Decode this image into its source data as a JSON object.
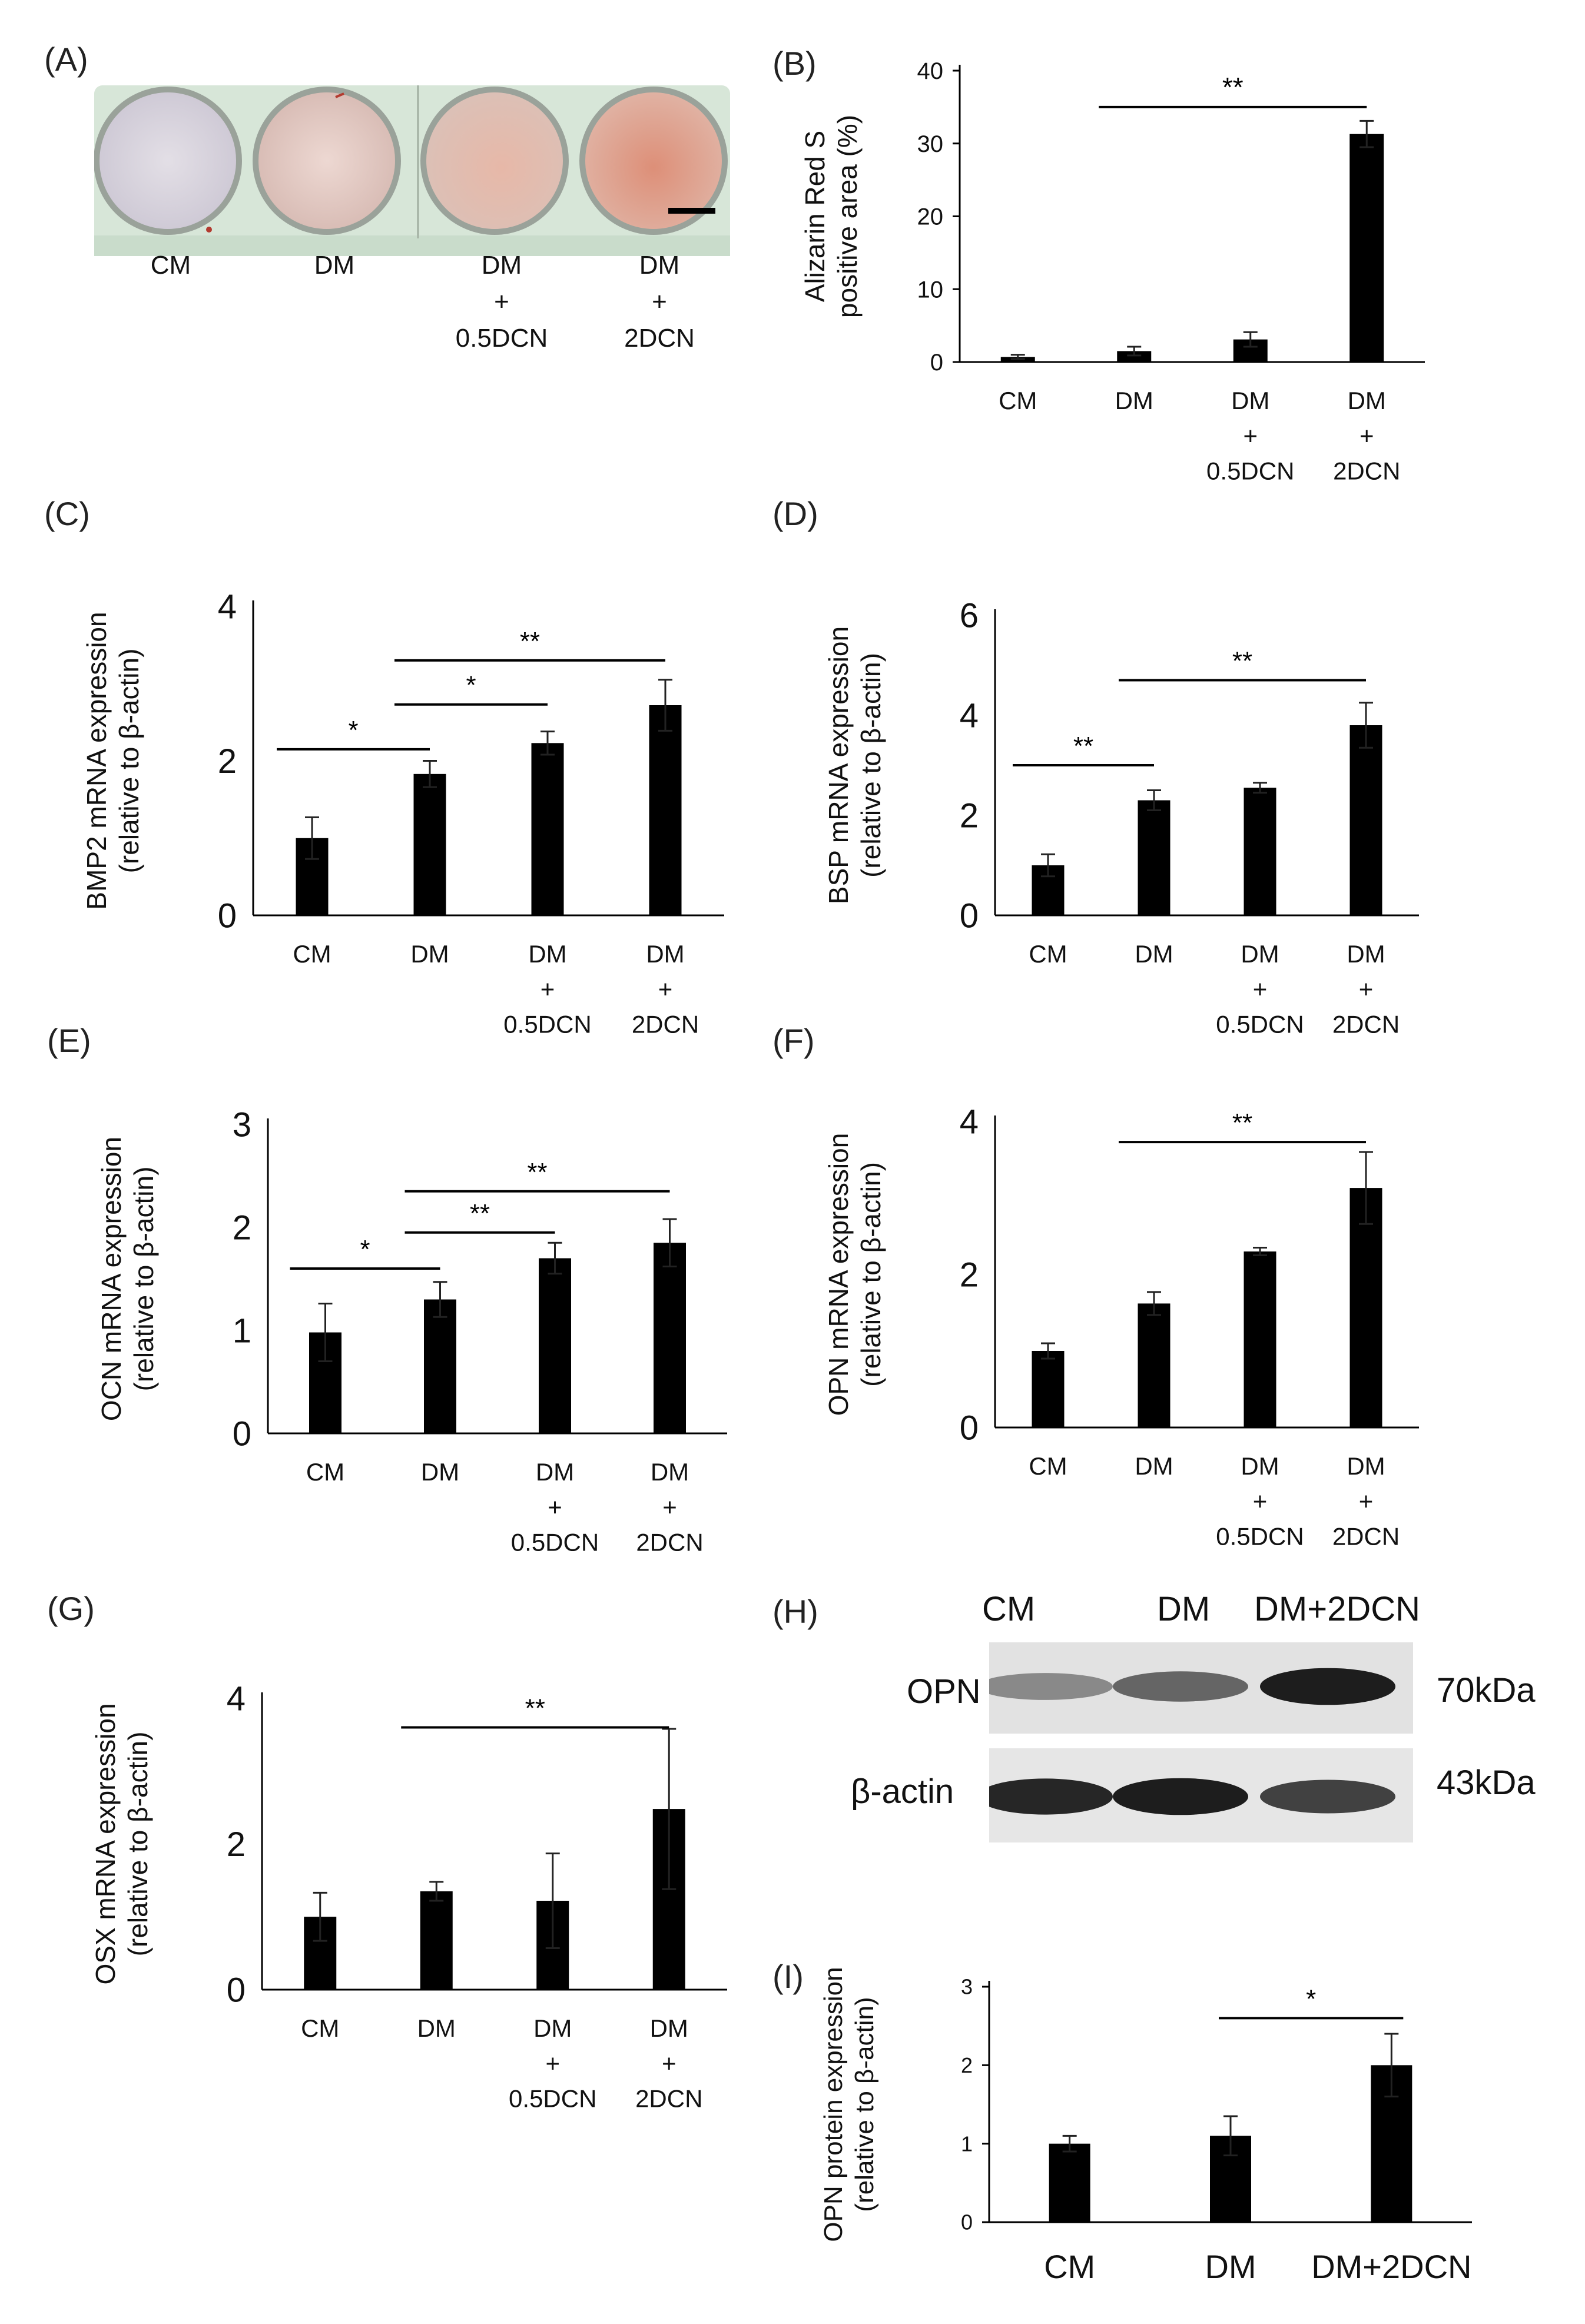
{
  "panel_labels": {
    "A": "(A)",
    "B": "(B)",
    "C": "(C)",
    "D": "(D)",
    "E": "(E)",
    "F": "(F)",
    "G": "(G)",
    "H": "(H)",
    "I": "(I)"
  },
  "panel_a": {
    "wells": [
      {
        "label": "CM",
        "tint": "#dcd7e0"
      },
      {
        "label": "DM",
        "tint": "#e7cfc8"
      },
      {
        "label": "DM\n+\n0.5DCN",
        "tint": "#e9c7bb"
      },
      {
        "label": "DM\n+\n2DCN",
        "tint": "#e3a995"
      }
    ]
  },
  "panel_h": {
    "lanes": [
      "CM",
      "DM",
      "DM+2DCN"
    ],
    "rows": [
      {
        "label": "OPN",
        "size": "70kDa",
        "intensity": [
          0.35,
          0.55,
          0.95
        ]
      },
      {
        "label": "β-actin",
        "size": "43kDa",
        "intensity": [
          0.9,
          0.95,
          0.75
        ]
      }
    ]
  },
  "chart_data": [
    {
      "id": "B",
      "type": "bar",
      "categories": [
        "CM",
        "DM",
        "DM\n+\n0.5DCN",
        "DM\n+\n2DCN"
      ],
      "values": [
        0.7,
        1.5,
        3.1,
        31.3
      ],
      "errors": [
        0.3,
        0.6,
        1.0,
        1.8
      ],
      "ylim": [
        0,
        40
      ],
      "yticks": [
        0,
        10,
        20,
        30,
        40
      ],
      "ylabel": [
        "Alizarin Red S",
        "positive area (%)"
      ],
      "significance": [
        {
          "from": 1,
          "to": 3,
          "label": "**",
          "y": 35
        }
      ]
    },
    {
      "id": "C",
      "type": "bar",
      "categories": [
        "CM",
        "DM",
        "DM\n+\n0.5DCN",
        "DM\n+\n2DCN"
      ],
      "values": [
        1.0,
        1.83,
        2.23,
        2.72
      ],
      "errors": [
        0.27,
        0.17,
        0.15,
        0.33
      ],
      "ylim": [
        0,
        4
      ],
      "yticks": [
        0,
        2,
        4
      ],
      "ylabel": [
        "BMP2 mRNA expression",
        "(relative to β-actin)"
      ],
      "significance": [
        {
          "from": 0,
          "to": 1,
          "label": "*",
          "y": 2.15
        },
        {
          "from": 1,
          "to": 2,
          "label": "*",
          "y": 2.73
        },
        {
          "from": 1,
          "to": 3,
          "label": "**",
          "y": 3.3
        }
      ]
    },
    {
      "id": "D",
      "type": "bar",
      "categories": [
        "CM",
        "DM",
        "DM\n+\n0.5DCN",
        "DM\n+\n2DCN"
      ],
      "values": [
        1.0,
        2.3,
        2.55,
        3.8
      ],
      "errors": [
        0.22,
        0.2,
        0.1,
        0.45
      ],
      "ylim": [
        0,
        6
      ],
      "yticks": [
        0,
        2,
        4,
        6
      ],
      "ylabel": [
        "BSP mRNA expression",
        "(relative to β-actin)"
      ],
      "significance": [
        {
          "from": 0,
          "to": 1,
          "label": "**",
          "y": 3.0
        },
        {
          "from": 1,
          "to": 3,
          "label": "**",
          "y": 4.7
        }
      ]
    },
    {
      "id": "E",
      "type": "bar",
      "categories": [
        "CM",
        "DM",
        "DM\n+\n0.5DCN",
        "DM\n+\n2DCN"
      ],
      "values": [
        0.98,
        1.3,
        1.7,
        1.85
      ],
      "errors": [
        0.28,
        0.17,
        0.15,
        0.23
      ],
      "ylim": [
        0,
        3
      ],
      "yticks": [
        0,
        1,
        2,
        3
      ],
      "ylabel": [
        "OCN mRNA expression",
        "(relative to β-actin)"
      ],
      "significance": [
        {
          "from": 0,
          "to": 1,
          "label": "*",
          "y": 1.6
        },
        {
          "from": 1,
          "to": 2,
          "label": "**",
          "y": 1.95
        },
        {
          "from": 1,
          "to": 3,
          "label": "**",
          "y": 2.35
        }
      ]
    },
    {
      "id": "F",
      "type": "bar",
      "categories": [
        "CM",
        "DM",
        "DM\n+\n0.5DCN",
        "DM\n+\n2DCN"
      ],
      "values": [
        1.0,
        1.62,
        2.3,
        3.13
      ],
      "errors": [
        0.1,
        0.15,
        0.05,
        0.47
      ],
      "ylim": [
        0,
        4
      ],
      "yticks": [
        0,
        2,
        4
      ],
      "ylabel": [
        "OPN mRNA expression",
        "(relative to β-actin)"
      ],
      "significance": [
        {
          "from": 1,
          "to": 3,
          "label": "**",
          "y": 3.73
        }
      ]
    },
    {
      "id": "G",
      "type": "bar",
      "categories": [
        "CM",
        "DM",
        "DM\n+\n0.5DCN",
        "DM\n+\n2DCN"
      ],
      "values": [
        1.0,
        1.35,
        1.22,
        2.48
      ],
      "errors": [
        0.33,
        0.13,
        0.65,
        1.1
      ],
      "ylim": [
        0,
        4
      ],
      "yticks": [
        0,
        2,
        4
      ],
      "ylabel": [
        "OSX mRNA expression",
        "(relative to β-actin)"
      ],
      "significance": [
        {
          "from": 1,
          "to": 3,
          "label": "**",
          "y": 3.6
        }
      ]
    },
    {
      "id": "I",
      "type": "bar",
      "categories": [
        "CM",
        "DM",
        "DM+2DCN"
      ],
      "values": [
        1.0,
        1.1,
        2.0
      ],
      "errors": [
        0.1,
        0.25,
        0.4
      ],
      "ylim": [
        0,
        3
      ],
      "yticks": [
        0,
        1,
        2,
        3
      ],
      "ylabel": [
        "OPN protein expression",
        "(relative to β-actin)"
      ],
      "significance": [
        {
          "from": 1,
          "to": 2,
          "label": "*",
          "y": 2.6
        }
      ]
    }
  ]
}
